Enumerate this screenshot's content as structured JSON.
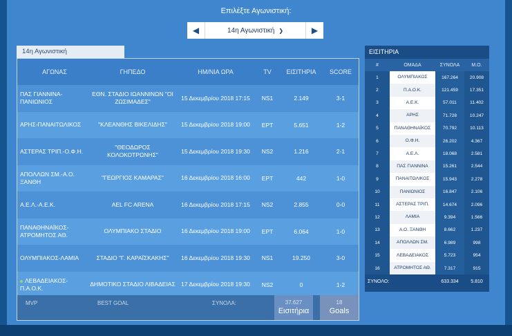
{
  "selector": {
    "title": "Επιλέξτε Αγωνιστική:",
    "value": "14η Αγωνιστική"
  },
  "tab_label": "14η Αγωνιστική",
  "fixtures": {
    "headers": {
      "match": "ΑΓΩΝΑΣ",
      "venue": "ΓΗΠΕΔΟ",
      "date": "ΗΜ/ΝΙΑ ΩΡΑ",
      "tv": "TV",
      "tickets": "ΕΙΣΙΤΗΡΙΑ",
      "score": "SCORE"
    },
    "rows": [
      {
        "match": "ΠΑΣ ΓΙΑΝΝΙΝΑ-ΠΑΝΙΩΝΙΟΣ",
        "venue": "ΕΘΝ. ΣΤΑΔΙΟ ΙΩΑΝΝΙΝΩΝ \"ΟΙ ΖΩΣΙΜΑΔΕΣ\"",
        "date": "15 Δεκεμβρίου 2018 17:15",
        "tv": "NS1",
        "tickets": "2.149",
        "score": "3-1"
      },
      {
        "match": "ΑΡΗΣ-ΠΑΝΑΙΤΩΛΙΚΟΣ",
        "venue": "\"ΚΛΕΑΝΘΗΣ ΒΙΚΕΛΙΔΗΣ\"",
        "date": "15 Δεκεμβρίου 2018 19:00",
        "tv": "ΕΡΤ",
        "tickets": "5.651",
        "score": "1-2"
      },
      {
        "match": "ΑΣΤΕΡΑΣ ΤΡΙΠ.-Ο.Φ.Η.",
        "venue": "\"ΘΕΟΔΩΡΟΣ ΚΟΛΟΚΟΤΡΩΝΗΣ\"",
        "date": "15 Δεκεμβρίου 2018 19:30",
        "tv": "NS2",
        "tickets": "1.216",
        "score": "2-1"
      },
      {
        "match": "ΑΠΟΛΛΩΝ ΣΜ.-Α.Ο. ΞΑΝΘΗ",
        "venue": "\"ΓΕΩΡΓΙΟΣ ΚΑΜΑΡΑΣ\"",
        "date": "16 Δεκεμβρίου 2018 16:00",
        "tv": "ΕΡΤ",
        "tickets": "442",
        "score": "1-0"
      },
      {
        "match": "Α.Ε.Λ.-Α.Ε.Κ.",
        "venue": "AEL FC ARENA",
        "date": "16 Δεκεμβρίου 2018 17:15",
        "tv": "NS2",
        "tickets": "2.855",
        "score": "0-0"
      },
      {
        "match": "ΠΑΝΑΘΗΝΑΪΚΟΣ-ΑΤΡΟΜΗΤΟΣ ΑΘ.",
        "venue": "ΟΛΥΜΠΙΑΚΟ ΣΤΑΔΙΟ",
        "date": "16 Δεκεμβρίου 2018 19:00",
        "tv": "ΕΡΤ",
        "tickets": "6.064",
        "score": "1-0"
      },
      {
        "match": "ΟΛΥΜΠΙΑΚΟΣ-ΛΑΜΙΑ",
        "venue": "ΣΤΑΔΙΟ \"Γ. ΚΑΡΑΪΣΚΑΚΗΣ\"",
        "date": "16 Δεκεμβρίου 2018 19:30",
        "tv": "NS1",
        "tickets": "19.250",
        "score": "3-0"
      },
      {
        "match": "ΛΕΒΑΔΕΙΑΚΟΣ-Π.Α.Ο.Κ.",
        "venue": "ΔΗΜΟΤΙΚΟ ΣΤΑΔΙΟ ΛΙΒΑΔΕΙΑΣ",
        "date": "17 Δεκεμβρίου 2018 19:30",
        "tv": "NS2",
        "tickets": "0",
        "score": "1-2",
        "live": true
      }
    ],
    "footer": {
      "mvp": "MVP",
      "best_goal": "BEST GOAL",
      "totals": "ΣΥΝΟΛΑ:",
      "tickets_total": "37.627",
      "tickets_label": "Εισιτήρια",
      "goals_total": "18",
      "goals_label": "Goals"
    }
  },
  "ranking": {
    "title": "ΕΙΣΙΤΗΡΙΑ",
    "headers": {
      "pos": "#",
      "team": "ΟΜΑΔΑ",
      "total": "ΣΥΝΟΛΑ",
      "avg": "Μ.Ο."
    },
    "rows": [
      {
        "pos": "1",
        "team": "ΟΛΥΜΠΙΑΚΟΣ",
        "total": "167.264",
        "avg": "20.908"
      },
      {
        "pos": "2",
        "team": "Π.Α.Ο.Κ.",
        "total": "121.459",
        "avg": "17.351"
      },
      {
        "pos": "3",
        "team": "Α.Ε.Κ.",
        "total": "57.011",
        "avg": "11.402"
      },
      {
        "pos": "4",
        "team": "ΑΡΗΣ",
        "total": "71.728",
        "avg": "10.247"
      },
      {
        "pos": "5",
        "team": "ΠΑΝΑΘΗΝΑΪΚΟΣ",
        "total": "70.792",
        "avg": "10.113"
      },
      {
        "pos": "6",
        "team": "Ο.Φ.Η.",
        "total": "26.202",
        "avg": "4.367"
      },
      {
        "pos": "7",
        "team": "Α.Ε.Λ.",
        "total": "18.068",
        "avg": "2.581"
      },
      {
        "pos": "8",
        "team": "ΠΑΣ ΓΙΑΝΝΙΝΑ",
        "total": "15.261",
        "avg": "2.544"
      },
      {
        "pos": "9",
        "team": "ΠΑΝΑΙΤΩΛΙΚΟΣ",
        "total": "15.943",
        "avg": "2.278"
      },
      {
        "pos": "10",
        "team": "ΠΑΝΙΩΝΙΟΣ",
        "total": "16.847",
        "avg": "2.106"
      },
      {
        "pos": "11",
        "team": "ΑΣΤΕΡΑΣ ΤΡΙΠ.",
        "total": "14.674",
        "avg": "2.096"
      },
      {
        "pos": "12",
        "team": "ΛΑΜΙΑ",
        "total": "9.394",
        "avg": "1.566"
      },
      {
        "pos": "13",
        "team": "Α.Ο. ΞΑΝΘΗ",
        "total": "8.662",
        "avg": "1.237"
      },
      {
        "pos": "14",
        "team": "ΑΠΟΛΛΩΝ ΣΜ.",
        "total": "6.989",
        "avg": "998"
      },
      {
        "pos": "15",
        "team": "ΛΕΒΑΔΕΙΑΚΟΣ",
        "total": "5.723",
        "avg": "954"
      },
      {
        "pos": "16",
        "team": "ΑΤΡΟΜΗΤΟΣ ΑΘ.",
        "total": "7.317",
        "avg": "915"
      }
    ],
    "footer": {
      "label": "ΣΥΝΟΛΟ:",
      "total": "633.334",
      "avg": "5.810"
    }
  },
  "icons": {
    "prev": "chevron-left-icon",
    "next": "chevron-right-icon",
    "dropdown": "chevron-down-icon",
    "live": "live-dot-icon"
  },
  "colors": {
    "background": "#3f86cf",
    "panel": "#1a4c86",
    "accent": "#16548f"
  }
}
